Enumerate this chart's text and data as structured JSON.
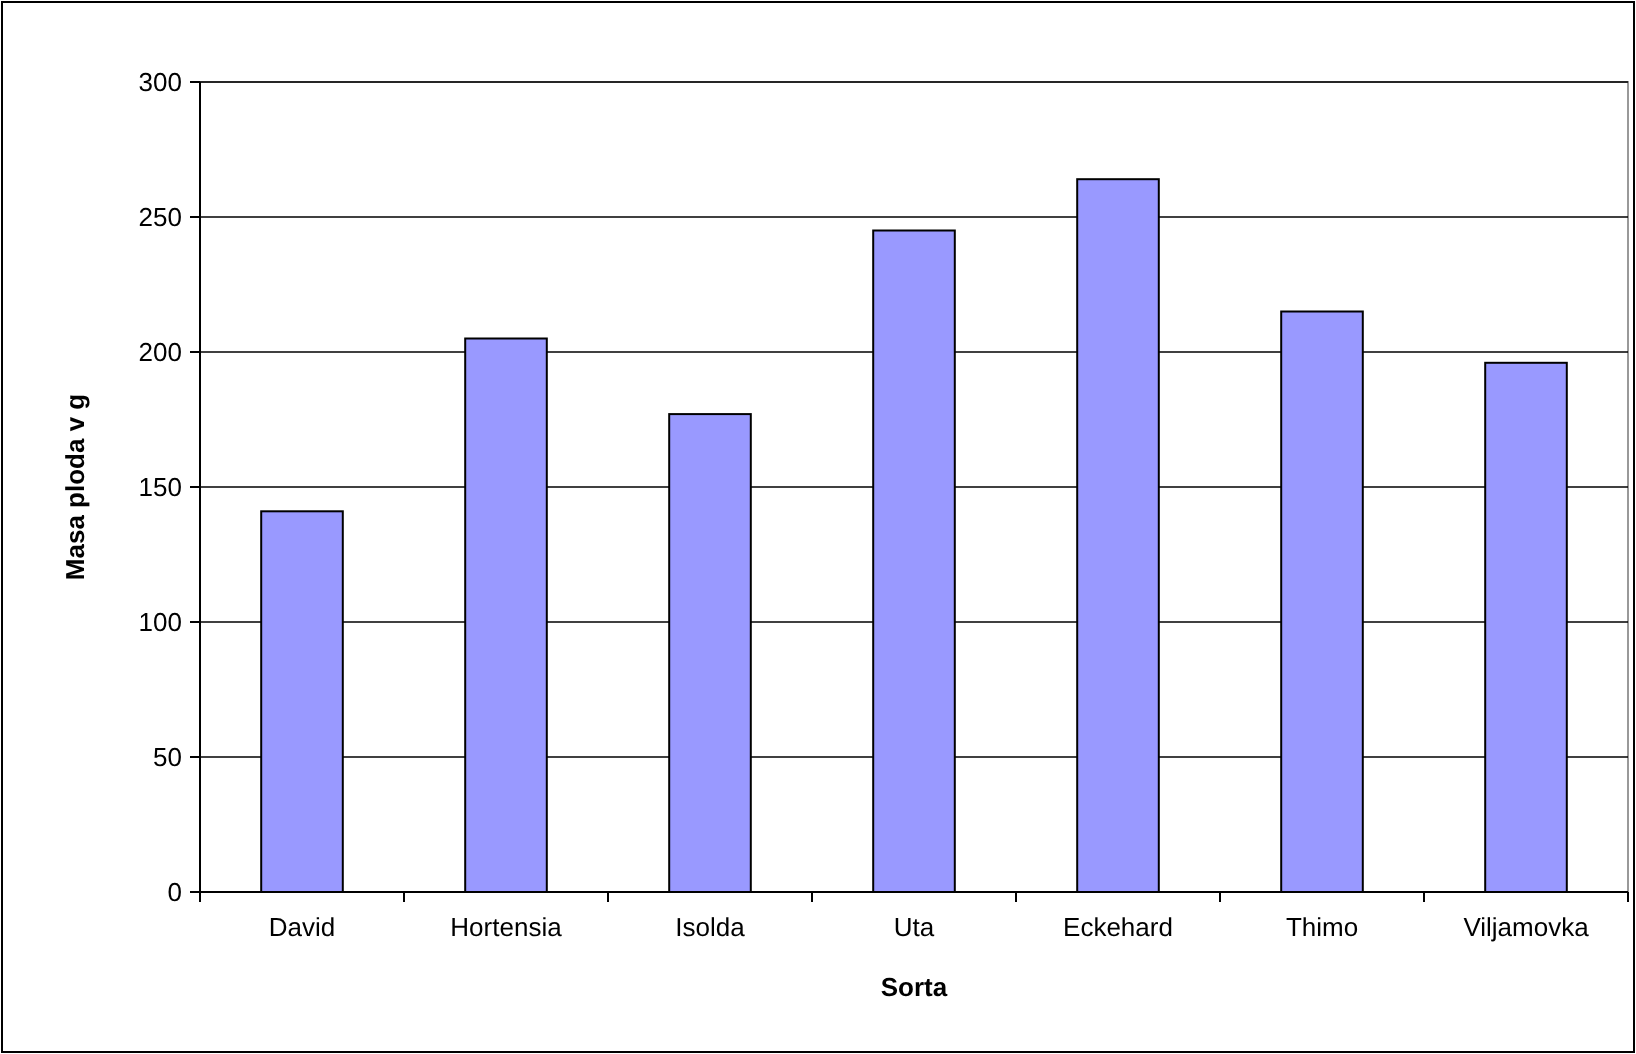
{
  "chart_data": {
    "type": "bar",
    "xlabel": "Sorta",
    "ylabel": "Masa ploda v g",
    "categories": [
      "David",
      "Hortensia",
      "Isolda",
      "Uta",
      "Eckehard",
      "Thimo",
      "Viljamovka"
    ],
    "values": [
      141,
      205,
      177,
      245,
      264,
      215,
      196
    ],
    "color": "#9999ff",
    "ylim": [
      0,
      300
    ],
    "yticks": [
      0,
      50,
      100,
      150,
      200,
      250,
      300
    ],
    "grid": "y"
  }
}
